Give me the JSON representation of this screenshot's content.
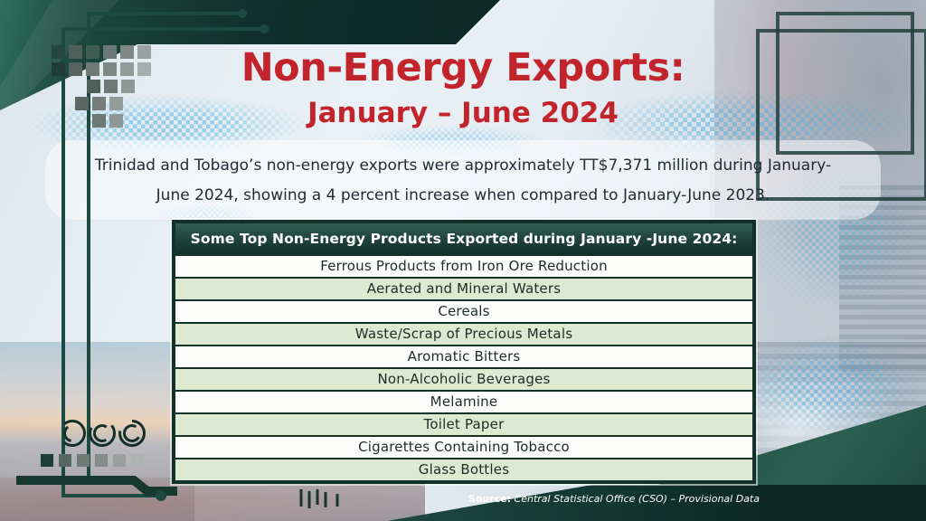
{
  "title": "Non-Energy Exports:",
  "subtitle": "January – June 2024",
  "intro": {
    "line1": "Trinidad and Tobago’s non-energy exports were approximately TT$7,371 million during January-",
    "line2": "June 2024, showing a 4 percent increase when compared to January-June 2023."
  },
  "table": {
    "header": "Some Top Non-Energy Products Exported during January -June 2024:",
    "rows": [
      "Ferrous Products from Iron Ore Reduction",
      "Aerated and Mineral Waters",
      "Cereals",
      "Waste/Scrap of Precious Metals",
      "Aromatic Bitters",
      "Non-Alcoholic Beverages",
      "Melamine",
      "Toilet Paper",
      "Cigarettes Containing Tobacco",
      "Glass Bottles"
    ]
  },
  "source": {
    "label": "Source:",
    "text": " Central Statistical Office (CSO) – Provisional Data"
  },
  "colors": {
    "accent_red": "#c2242c",
    "dark_teal": "#112e28",
    "mid_teal": "#2c5f51",
    "row_green": "#dcead2",
    "row_white": "#fdfdfc",
    "table_border": "#133029",
    "pixel_blue": "#55b6e4"
  }
}
